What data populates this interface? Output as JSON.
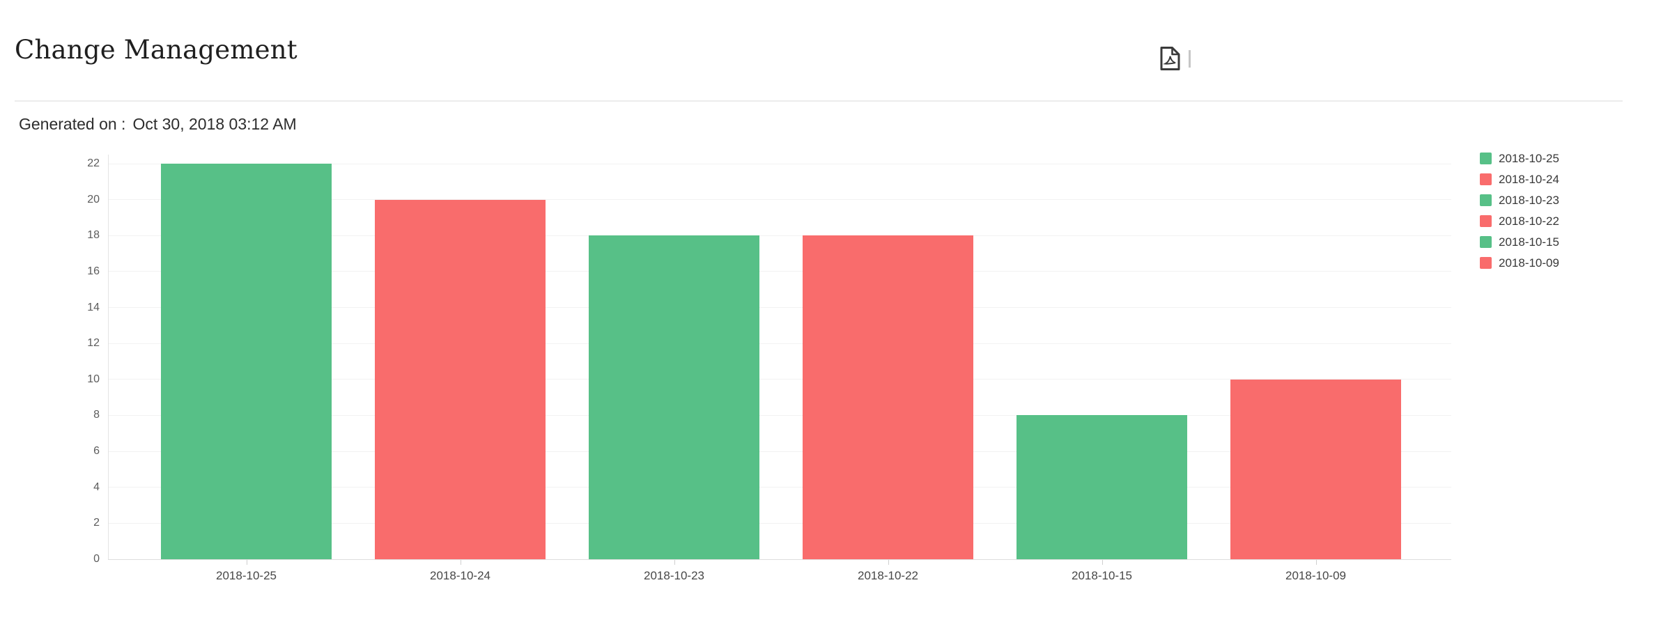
{
  "header": {
    "title": "Change Management"
  },
  "toolbar": {
    "export_pdf_tooltip": "Export as PDF"
  },
  "meta": {
    "generated_label": "Generated on :",
    "generated_value": "Oct 30, 2018 03:12 AM"
  },
  "chart_data": {
    "type": "bar",
    "title": "",
    "xlabel": "",
    "ylabel": "",
    "categories": [
      "2018-10-25",
      "2018-10-24",
      "2018-10-23",
      "2018-10-22",
      "2018-10-15",
      "2018-10-09"
    ],
    "values": [
      22,
      20,
      18,
      18,
      8,
      10
    ],
    "bar_colors": [
      "#57c087",
      "#f96c6c",
      "#57c087",
      "#f96c6c",
      "#57c087",
      "#f96c6c"
    ],
    "ylim": [
      0,
      22
    ],
    "ytick_step": 2,
    "ytick_labels": [
      "0",
      "2",
      "4",
      "6",
      "8",
      "10",
      "12",
      "14",
      "16",
      "18",
      "20",
      "22"
    ],
    "grid": "horizontal",
    "legend_position": "right",
    "legend_entries": [
      {
        "label": "2018-10-25",
        "color": "#57c087"
      },
      {
        "label": "2018-10-24",
        "color": "#f96c6c"
      },
      {
        "label": "2018-10-23",
        "color": "#57c087"
      },
      {
        "label": "2018-10-22",
        "color": "#f96c6c"
      },
      {
        "label": "2018-10-15",
        "color": "#57c087"
      },
      {
        "label": "2018-10-09",
        "color": "#f96c6c"
      }
    ]
  },
  "colors": {
    "green": "#57c087",
    "red": "#f96c6c",
    "gridline": "#f2f2f2",
    "axis": "#dedede",
    "icon": "#3a3a3a"
  }
}
